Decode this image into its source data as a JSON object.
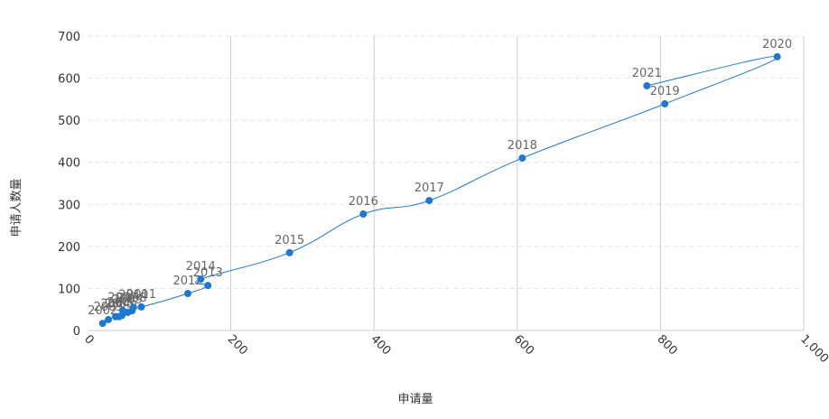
{
  "chart_data": {
    "type": "line",
    "x_label": "申请量",
    "y_label": "申请人数量",
    "series": [
      {
        "name": "申请人数量",
        "color": "#1f77d0",
        "labels": [
          "2002",
          "2003",
          "2004",
          "2005",
          "2006",
          "2007",
          "2008",
          "2009",
          "2010",
          "2011",
          "2012",
          "2013",
          "2014",
          "2015",
          "2016",
          "2017",
          "2018",
          "2019",
          "2020",
          "2021"
        ],
        "x": [
          21,
          29,
          39,
          44,
          48,
          49,
          62,
          56,
          64,
          75,
          140,
          168,
          158,
          282,
          385,
          477,
          607,
          806,
          963,
          781
        ],
        "values": [
          17,
          26,
          33,
          33,
          36,
          48,
          47,
          43,
          55,
          56,
          88,
          107,
          122,
          185,
          277,
          309,
          410,
          539,
          651,
          582
        ]
      }
    ],
    "xlim": [
      0,
      1000
    ],
    "xticks": [
      0,
      200,
      400,
      600,
      800,
      {
        "value": 1000,
        "label": "1,000"
      }
    ],
    "ylim": [
      0,
      700
    ],
    "yticks": [
      0,
      100,
      200,
      300,
      400,
      500,
      600,
      700
    ],
    "grid": true
  }
}
